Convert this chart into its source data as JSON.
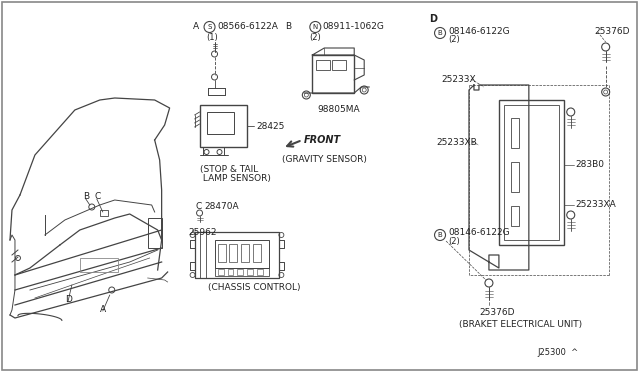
{
  "bg_color": "#ffffff",
  "border_color": "#999999",
  "line_color": "#444444",
  "text_color": "#222222",
  "fig_width": 6.4,
  "fig_height": 3.72,
  "dpi": 100,
  "labels": {
    "stop_tail_1": "(STOP & TAIL",
    "stop_tail_2": " LAMP SENSOR)",
    "gravity": "(GRAVITY SENSOR)",
    "chassis": "(CHASSIS CONTROL)",
    "bracket": "(BRAKET ELECTRICAL UNIT)",
    "front": "FRONT",
    "ref_code": "J25300  ^"
  },
  "parts": {
    "A_label": "A",
    "S_label": "S",
    "part_08566": "08566-6122A",
    "qty_1": "(1)",
    "B_label_top": "B",
    "N_label": "N",
    "part_08911": "08911-1062G",
    "qty_2": "(2)",
    "part_28425": "28425",
    "part_98805": "98805MA",
    "C_label": "C",
    "part_28470": "28470A",
    "part_25962": "25962",
    "D_label": "D",
    "B_circle": "B",
    "part_08146": "08146-6122G",
    "qty_2b": "(2)",
    "part_25376D_top": "25376D",
    "part_25233X": "25233X",
    "part_25233XB": "25233XB",
    "part_283B0": "283B0",
    "part_25233XA": "25233XA",
    "part_25376D_bot": "25376D"
  }
}
